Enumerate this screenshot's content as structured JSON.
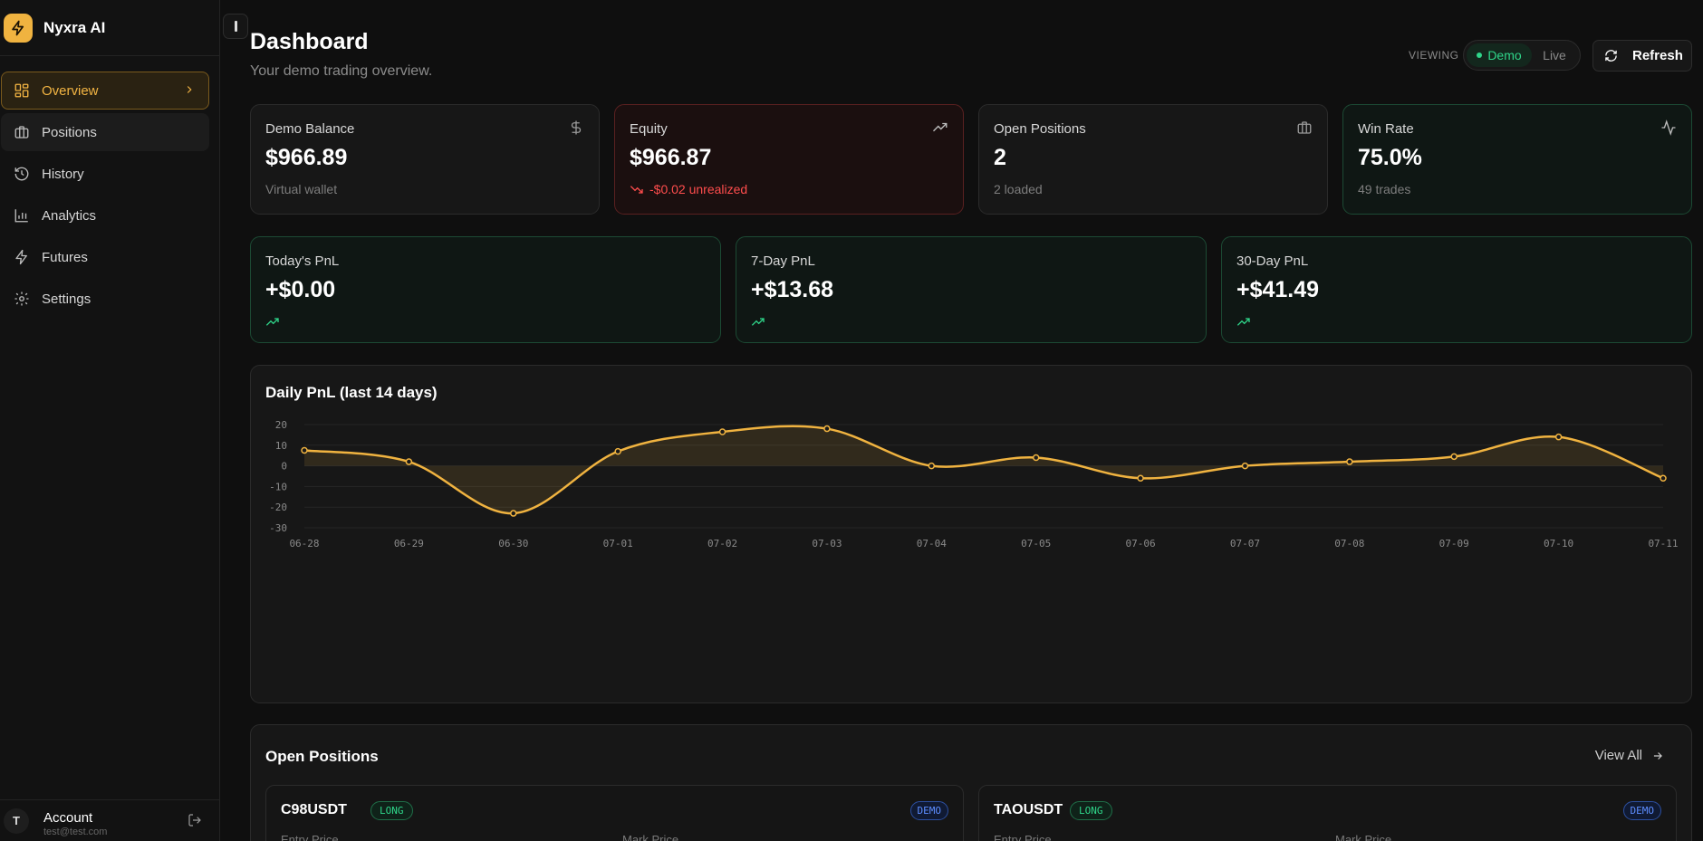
{
  "app": {
    "name": "Nyxra AI"
  },
  "nav": [
    {
      "label": "Overview",
      "icon": "grid-icon",
      "active": true
    },
    {
      "label": "Positions",
      "icon": "briefcase-icon"
    },
    {
      "label": "History",
      "icon": "history-icon"
    },
    {
      "label": "Analytics",
      "icon": "bar-chart-icon"
    },
    {
      "label": "Futures",
      "icon": "lightning-icon"
    },
    {
      "label": "Settings",
      "icon": "gear-icon"
    }
  ],
  "account": {
    "initial": "T",
    "label": "Account",
    "email": "test@test.com"
  },
  "header": {
    "title": "Dashboard",
    "subtitle": "Your demo trading overview.",
    "viewing_label": "VIEWING",
    "mode_demo": "Demo",
    "mode_live": "Live",
    "refresh_label": "Refresh"
  },
  "stats": {
    "balance": {
      "label": "Demo Balance",
      "value": "$966.89",
      "sub": "Virtual wallet"
    },
    "equity": {
      "label": "Equity",
      "value": "$966.87",
      "sub": "-$0.02 unrealized"
    },
    "open_positions": {
      "label": "Open Positions",
      "value": "2",
      "sub": "2 loaded"
    },
    "win_rate": {
      "label": "Win Rate",
      "value": "75.0%",
      "sub": "49 trades"
    }
  },
  "pnl": {
    "today": {
      "label": "Today's PnL",
      "value": "+$0.00"
    },
    "seven_day": {
      "label": "7-Day PnL",
      "value": "+$13.68"
    },
    "thirty_day": {
      "label": "30-Day PnL",
      "value": "+$41.49"
    }
  },
  "colors": {
    "accent": "#f0b340",
    "positive": "#2fd68a",
    "negative": "#ff4d4d"
  },
  "chart_data": {
    "type": "area",
    "title": "Daily PnL (last 14 days)",
    "categories": [
      "06-28",
      "06-29",
      "06-30",
      "07-01",
      "07-02",
      "07-03",
      "07-04",
      "07-05",
      "07-06",
      "07-07",
      "07-08",
      "07-09",
      "07-10",
      "07-11"
    ],
    "values": [
      7.5,
      2,
      -23,
      7,
      16.5,
      18,
      0,
      4,
      -6,
      0,
      2,
      4.5,
      14,
      -6
    ],
    "yticks": [
      20,
      10,
      0,
      -10,
      -20,
      -30
    ],
    "ylim": [
      -30,
      20
    ],
    "grid": true
  },
  "open_positions": {
    "title": "Open Positions",
    "view_all": "View All",
    "items": [
      {
        "symbol": "C98USDT",
        "side": "LONG",
        "mode": "DEMO",
        "entry_label": "Entry Price",
        "mark_label": "Mark Price"
      },
      {
        "symbol": "TAOUSDT",
        "side": "LONG",
        "mode": "DEMO",
        "entry_label": "Entry Price",
        "mark_label": "Mark Price"
      }
    ]
  }
}
